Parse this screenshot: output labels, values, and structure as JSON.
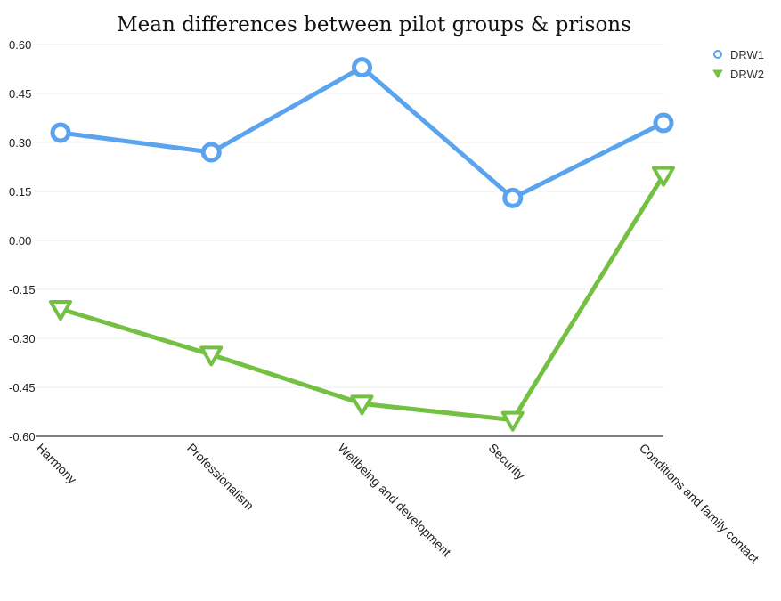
{
  "chart_data": {
    "type": "line",
    "title": "Mean differences between pilot groups & prisons",
    "xlabel": "",
    "ylabel": "",
    "categories": [
      "Harmony",
      "Professionalism",
      "Wellbeing and development",
      "Security",
      "Conditions and family contact"
    ],
    "yticks": [
      "0.60",
      "0.45",
      "0.30",
      "0.15",
      "0.00",
      "-0.15",
      "-0.30",
      "-0.45",
      "-0.60"
    ],
    "ylim": [
      -0.6,
      0.6
    ],
    "grid": true,
    "legend_position": "top-right",
    "series": [
      {
        "name": "DRW1",
        "values": [
          0.33,
          0.27,
          0.53,
          0.13,
          0.36
        ],
        "color": "#5aa3ee",
        "marker": "circle"
      },
      {
        "name": "DRW2",
        "values": [
          -0.21,
          -0.35,
          -0.5,
          -0.55,
          0.2
        ],
        "color": "#74c043",
        "marker": "triangle-down"
      }
    ]
  }
}
